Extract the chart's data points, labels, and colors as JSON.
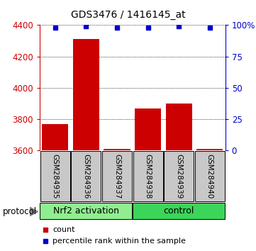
{
  "title": "GDS3476 / 1416145_at",
  "samples": [
    "GSM284935",
    "GSM284936",
    "GSM284937",
    "GSM284938",
    "GSM284939",
    "GSM284940"
  ],
  "counts": [
    3770,
    4310,
    3610,
    3870,
    3900,
    3610
  ],
  "percentile_ranks": [
    98,
    99,
    98,
    98,
    99,
    98
  ],
  "ylim_left": [
    3600,
    4400
  ],
  "ylim_right": [
    0,
    100
  ],
  "yticks_left": [
    3600,
    3800,
    4000,
    4200,
    4400
  ],
  "yticks_right": [
    0,
    25,
    50,
    75,
    100
  ],
  "ytick_labels_right": [
    "0",
    "25",
    "50",
    "75",
    "100%"
  ],
  "groups": [
    {
      "label": "Nrf2 activation",
      "start": 0,
      "end": 3,
      "color": "#90EE90"
    },
    {
      "label": "control",
      "start": 3,
      "end": 6,
      "color": "#3DD45A"
    }
  ],
  "protocol_label": "protocol",
  "bar_color": "#CC0000",
  "dot_color": "#0000CC",
  "bar_width": 0.85,
  "grid_color": "#000000",
  "bg_color": "#FFFFFF",
  "sample_box_color": "#C8C8C8",
  "legend_count_color": "#CC0000",
  "legend_dot_color": "#0000CC",
  "title_fontsize": 10,
  "axis_fontsize": 8.5,
  "sample_fontsize": 7.5,
  "group_fontsize": 9,
  "legend_fontsize": 8
}
